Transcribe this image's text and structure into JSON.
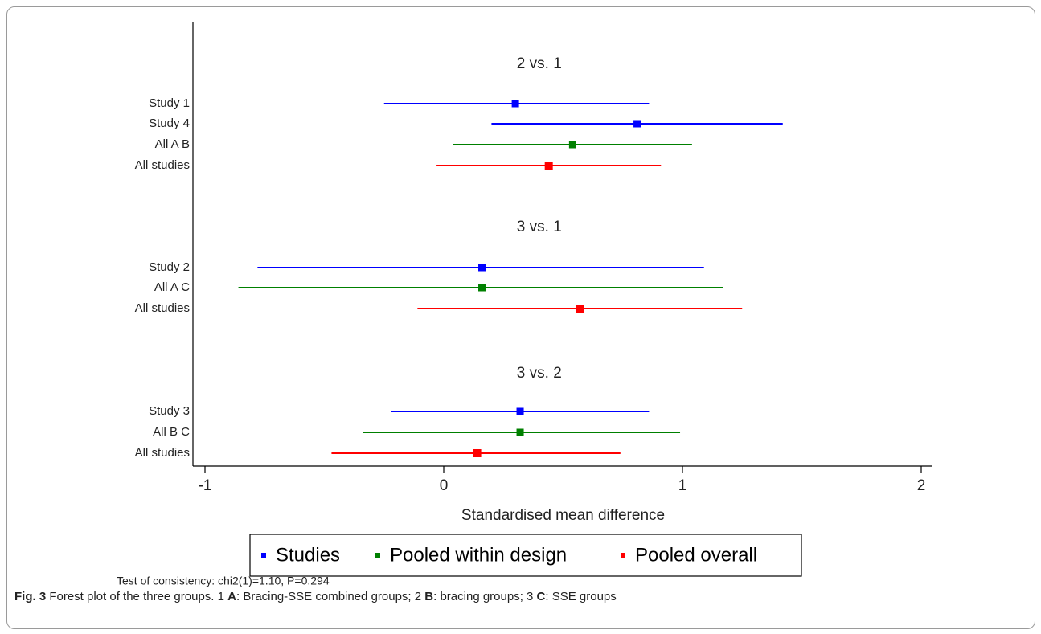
{
  "chart_data": {
    "type": "forest",
    "xlabel": "Standardised mean difference",
    "xlim": [
      -1,
      2
    ],
    "xticks": [
      -1,
      0,
      1,
      2
    ],
    "groups": [
      {
        "title": "2 vs. 1",
        "rows": [
          {
            "label": "Study 1",
            "kind": "study",
            "est": 0.3,
            "lo": -0.25,
            "hi": 0.86
          },
          {
            "label": "Study 4",
            "kind": "study",
            "est": 0.81,
            "lo": 0.2,
            "hi": 1.42
          },
          {
            "label": "All A B",
            "kind": "design",
            "est": 0.54,
            "lo": 0.04,
            "hi": 1.04
          },
          {
            "label": "All studies",
            "kind": "overall",
            "est": 0.44,
            "lo": -0.03,
            "hi": 0.91
          }
        ]
      },
      {
        "title": "3 vs. 1",
        "rows": [
          {
            "label": "Study 2",
            "kind": "study",
            "est": 0.16,
            "lo": -0.78,
            "hi": 1.09
          },
          {
            "label": "All A C",
            "kind": "design",
            "est": 0.16,
            "lo": -0.86,
            "hi": 1.17
          },
          {
            "label": "All studies",
            "kind": "overall",
            "est": 0.57,
            "lo": -0.11,
            "hi": 1.25
          }
        ]
      },
      {
        "title": "3 vs. 2",
        "rows": [
          {
            "label": "Study 3",
            "kind": "study",
            "est": 0.32,
            "lo": -0.22,
            "hi": 0.86
          },
          {
            "label": "All B C",
            "kind": "design",
            "est": 0.32,
            "lo": -0.34,
            "hi": 0.99
          },
          {
            "label": "All studies",
            "kind": "overall",
            "est": 0.14,
            "lo": -0.47,
            "hi": 0.74
          }
        ]
      }
    ],
    "legend": [
      {
        "kind": "study",
        "label": "Studies"
      },
      {
        "kind": "design",
        "label": "Pooled within design"
      },
      {
        "kind": "overall",
        "label": "Pooled overall"
      }
    ],
    "colors": {
      "study": "#0000ff",
      "design": "#008000",
      "overall": "#ff0000"
    },
    "note": "Test of consistency: chi2(1)=1.10, P=0.294",
    "grid": false,
    "legend_position": "bottom"
  },
  "caption": {
    "fig_label": "Fig. 3",
    "text_1": "  Forest plot of the three groups. 1 ",
    "b_1": "A",
    "text_2": ": Bracing-SSE combined groups; 2 ",
    "b_2": "B",
    "text_3": ": bracing groups; 3 ",
    "b_3": "C",
    "text_4": ": SSE groups"
  }
}
